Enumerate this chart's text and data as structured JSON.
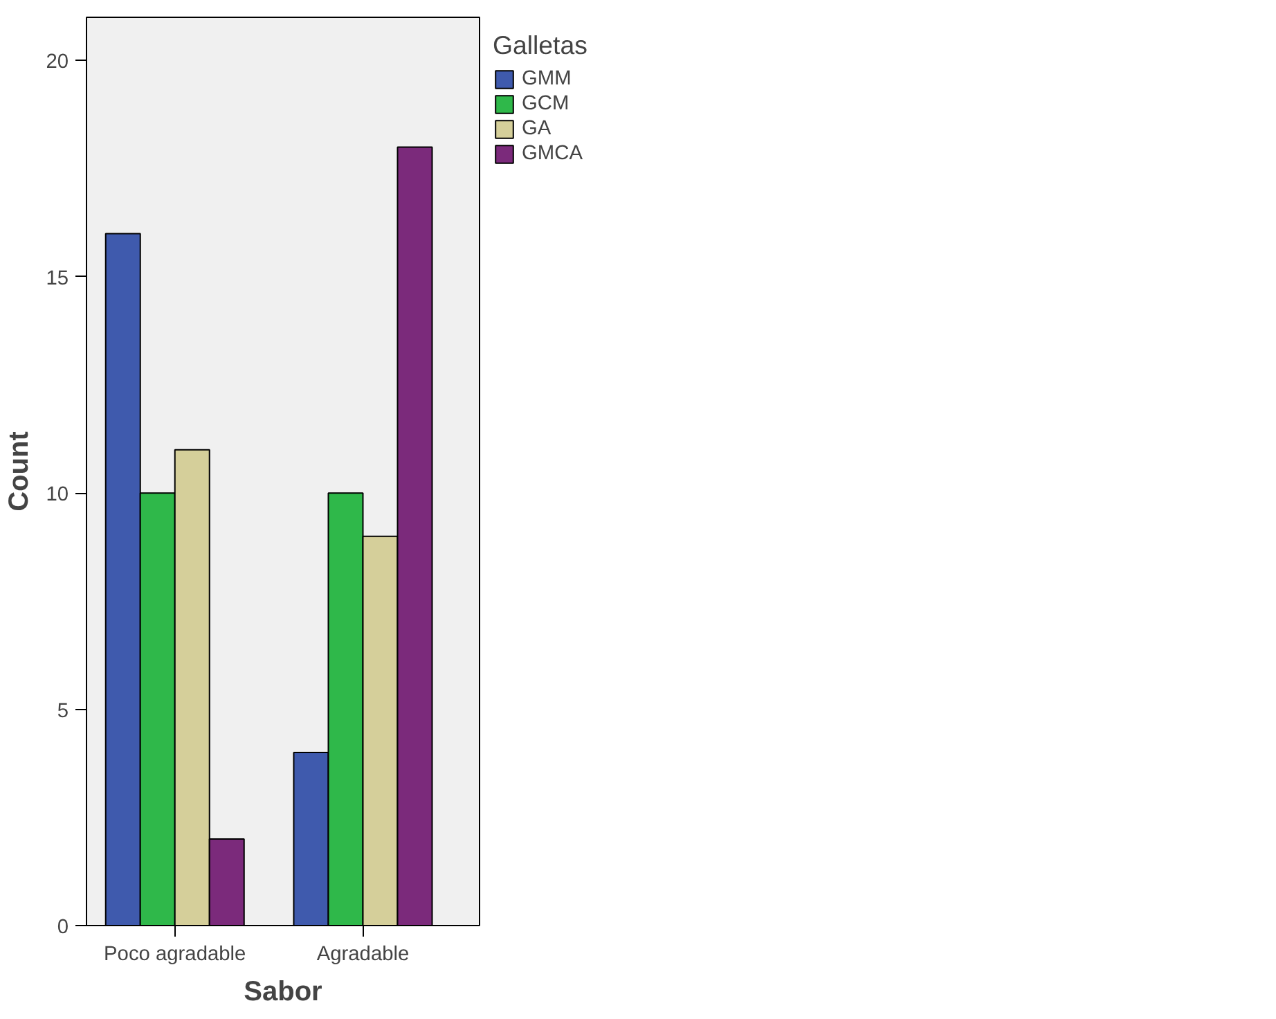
{
  "chart_data": {
    "type": "bar",
    "xlabel": "Sabor",
    "ylabel": "Count",
    "legend_title": "Galletas",
    "legend": "right",
    "grid": false,
    "categories": [
      "Poco agradable",
      "Agradable"
    ],
    "ylim": [
      0,
      21
    ],
    "yticks": [
      0,
      5,
      10,
      15,
      20
    ],
    "series": [
      {
        "name": "GMM",
        "color": "#3f5aad",
        "values": [
          16,
          4
        ]
      },
      {
        "name": "GCM",
        "color": "#2fb84a",
        "values": [
          10,
          10
        ]
      },
      {
        "name": "GA",
        "color": "#d5cf9a",
        "values": [
          11,
          9
        ]
      },
      {
        "name": "GMCA",
        "color": "#7b2a7b",
        "values": [
          2,
          18
        ]
      }
    ]
  }
}
